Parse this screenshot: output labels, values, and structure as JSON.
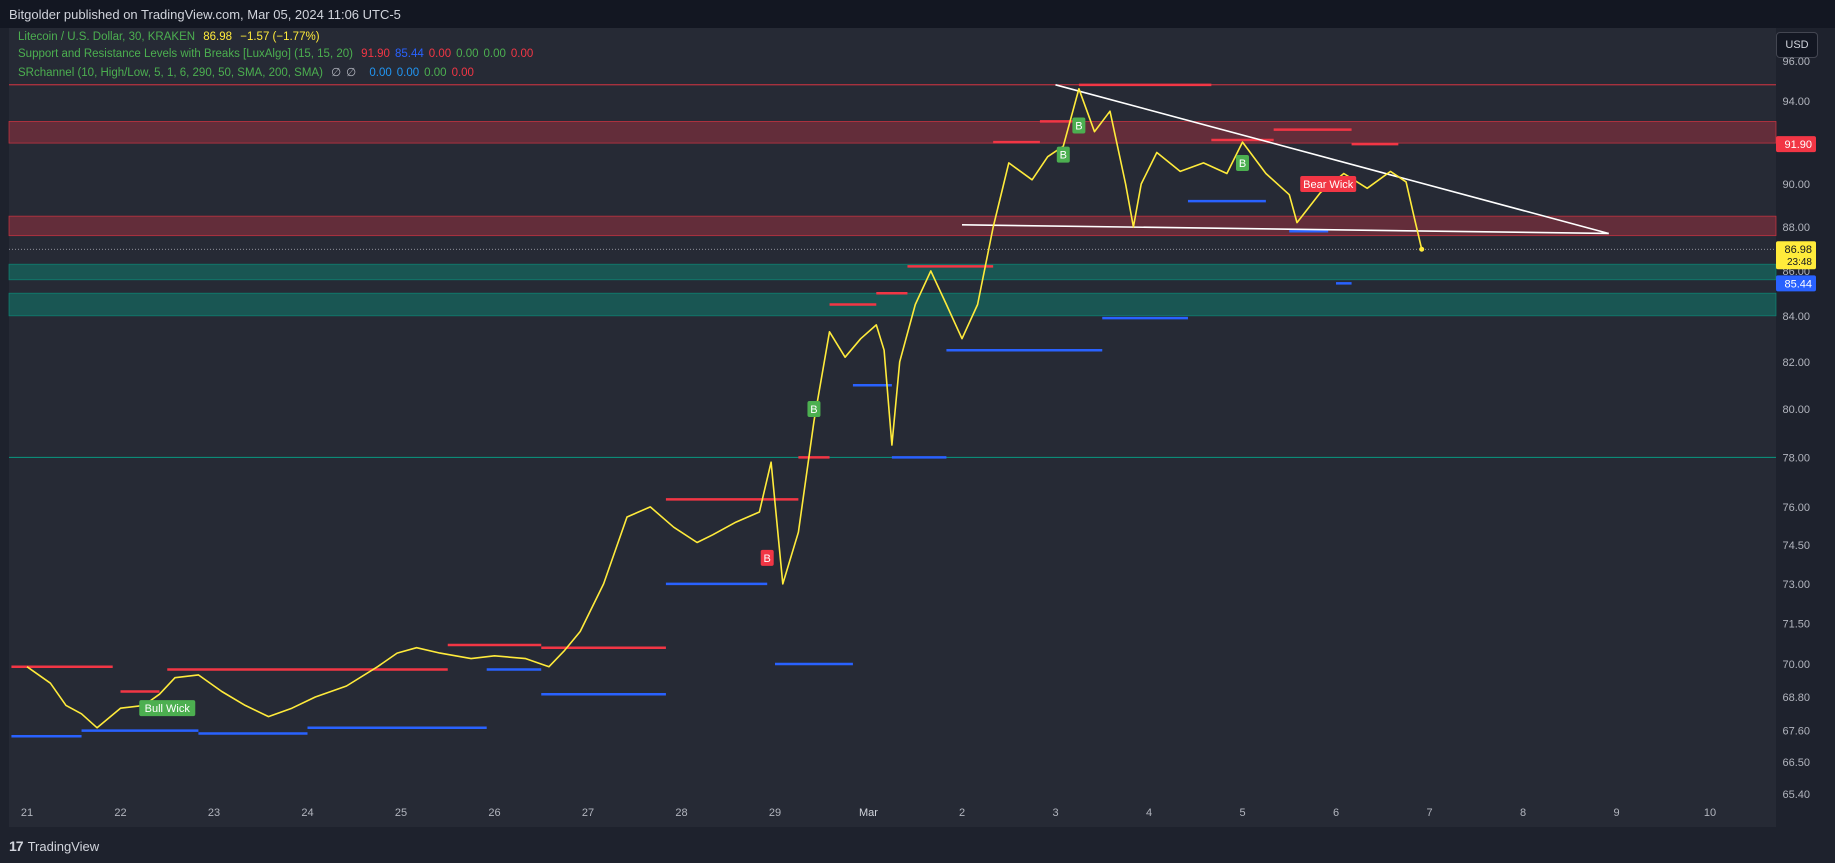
{
  "header": {
    "published": "Bitgolder published on TradingView.com, Mar 05, 2024 11:06 UTC-5"
  },
  "footer": {
    "brand": "TradingView",
    "logo": "tradingview-logo-icon"
  },
  "price_axis": {
    "currency": "USD"
  },
  "legend": {
    "symbol": "Litecoin / U.S. Dollar, 30, KRAKEN",
    "close": "86.98",
    "change": "−1.57 (−1.77%)",
    "indicator1": {
      "name": "Support and Resistance Levels with Breaks [LuxAlgo] (15, 15, 20)",
      "values": [
        "91.90",
        "85.44",
        "0.00",
        "0.00",
        "0.00",
        "0.00"
      ],
      "colors": [
        "#f23645",
        "#2962ff",
        "#f23645",
        "#4caf50",
        "#4caf50",
        "#f23645"
      ]
    },
    "indicator2": {
      "name": "SRchannel (10, High/Low, 5, 1, 6, 290, 50, SMA, 200, SMA)",
      "symbols": [
        "∅",
        "∅"
      ],
      "values": [
        "0.00",
        "0.00",
        "0.00",
        "0.00"
      ],
      "colors": [
        "#2196f3",
        "#2196f3",
        "#4caf50",
        "#f23645"
      ]
    }
  },
  "colors": {
    "price_line": "#ffeb3b",
    "resistance": "#f23645",
    "support": "#2962ff",
    "bg": "#262a35",
    "axis_text": "#b2b5be"
  },
  "chart_data": {
    "type": "line",
    "series": [
      {
        "name": "Litecoin / U.S. Dollar",
        "points": [
          [
            "Feb 21 00:00",
            69.9
          ],
          [
            "Feb 21 06:00",
            69.3
          ],
          [
            "Feb 21 10:00",
            68.5
          ],
          [
            "Feb 21 14:00",
            68.2
          ],
          [
            "Feb 21 18:00",
            67.7
          ],
          [
            "Feb 22 00:00",
            68.4
          ],
          [
            "Feb 22 06:00",
            68.5
          ],
          [
            "Feb 22 10:00",
            68.9
          ],
          [
            "Feb 22 14:00",
            69.5
          ],
          [
            "Feb 22 20:00",
            69.6
          ],
          [
            "Feb 23 02:00",
            69.0
          ],
          [
            "Feb 23 08:00",
            68.5
          ],
          [
            "Feb 23 14:00",
            68.1
          ],
          [
            "Feb 23 20:00",
            68.4
          ],
          [
            "Feb 24 02:00",
            68.8
          ],
          [
            "Feb 24 10:00",
            69.2
          ],
          [
            "Feb 24 18:00",
            69.9
          ],
          [
            "Feb 24 23:00",
            70.4
          ],
          [
            "Feb 25 04:00",
            70.6
          ],
          [
            "Feb 25 10:00",
            70.4
          ],
          [
            "Feb 25 18:00",
            70.2
          ],
          [
            "Feb 26 00:00",
            70.3
          ],
          [
            "Feb 26 08:00",
            70.2
          ],
          [
            "Feb 26 14:00",
            69.9
          ],
          [
            "Feb 26 18:00",
            70.5
          ],
          [
            "Feb 26 22:00",
            71.2
          ],
          [
            "Feb 27 04:00",
            73.0
          ],
          [
            "Feb 27 10:00",
            75.6
          ],
          [
            "Feb 27 16:00",
            76.0
          ],
          [
            "Feb 27 22:00",
            75.2
          ],
          [
            "Feb 28 04:00",
            74.6
          ],
          [
            "Feb 28 08:00",
            74.9
          ],
          [
            "Feb 28 14:00",
            75.4
          ],
          [
            "Feb 28 20:00",
            75.8
          ],
          [
            "Feb 28 23:00",
            77.8
          ],
          [
            "Feb 29 02:00",
            73.0
          ],
          [
            "Feb 29 06:00",
            75.0
          ],
          [
            "Feb 29 10:00",
            79.5
          ],
          [
            "Feb 29 14:00",
            83.3
          ],
          [
            "Feb 29 18:00",
            82.2
          ],
          [
            "Feb 29 22:00",
            83.0
          ],
          [
            "Mar 01 02:00",
            83.6
          ],
          [
            "Mar 01 04:00",
            82.5
          ],
          [
            "Mar 01 06:00",
            78.5
          ],
          [
            "Mar 01 08:00",
            82.0
          ],
          [
            "Mar 01 12:00",
            84.5
          ],
          [
            "Mar 01 16:00",
            86.0
          ],
          [
            "Mar 01 20:00",
            84.5
          ],
          [
            "Mar 02 00:00",
            83.0
          ],
          [
            "Mar 02 04:00",
            84.5
          ],
          [
            "Mar 02 08:00",
            88.0
          ],
          [
            "Mar 02 12:00",
            91.0
          ],
          [
            "Mar 02 18:00",
            90.2
          ],
          [
            "Mar 02 22:00",
            91.3
          ],
          [
            "Mar 03 02:00",
            91.8
          ],
          [
            "Mar 03 06:00",
            94.6
          ],
          [
            "Mar 03 10:00",
            92.5
          ],
          [
            "Mar 03 14:00",
            93.5
          ],
          [
            "Mar 03 18:00",
            90.0
          ],
          [
            "Mar 03 20:00",
            88.0
          ],
          [
            "Mar 03 22:00",
            90.0
          ],
          [
            "Mar 04 02:00",
            91.5
          ],
          [
            "Mar 04 08:00",
            90.6
          ],
          [
            "Mar 04 14:00",
            91.0
          ],
          [
            "Mar 04 20:00",
            90.5
          ],
          [
            "Mar 05 00:00",
            92.0
          ],
          [
            "Mar 05 06:00",
            90.5
          ],
          [
            "Mar 05 12:00",
            89.5
          ],
          [
            "Mar 05 14:00",
            88.2
          ],
          [
            "Mar 05 20:00",
            89.6
          ],
          [
            "Mar 06 02:00",
            90.5
          ],
          [
            "Mar 06 08:00",
            89.8
          ],
          [
            "Mar 06 14:00",
            90.6
          ],
          [
            "Mar 06 18:00",
            90.1
          ],
          [
            "Mar 06 20:00",
            88.5
          ],
          [
            "Mar 06 22:00",
            86.98
          ]
        ]
      }
    ],
    "resistance_levels": [
      {
        "price": 69.9,
        "from": "Feb 20 20:00",
        "to": "Feb 21 22:00"
      },
      {
        "price": 69.0,
        "from": "Feb 22 00:00",
        "to": "Feb 22 10:00"
      },
      {
        "price": 69.8,
        "from": "Feb 22 12:00",
        "to": "Feb 25 12:00"
      },
      {
        "price": 70.7,
        "from": "Feb 25 12:00",
        "to": "Feb 26 12:00"
      },
      {
        "price": 70.6,
        "from": "Feb 26 12:00",
        "to": "Feb 27 20:00"
      },
      {
        "price": 76.3,
        "from": "Feb 27 20:00",
        "to": "Feb 29 06:00"
      },
      {
        "price": 78.0,
        "from": "Feb 29 06:00",
        "to": "Feb 29 14:00"
      },
      {
        "price": 84.5,
        "from": "Feb 29 14:00",
        "to": "Mar 01 02:00"
      },
      {
        "price": 85.0,
        "from": "Mar 01 02:00",
        "to": "Mar 01 10:00"
      },
      {
        "price": 86.2,
        "from": "Mar 01 10:00",
        "to": "Mar 02 08:00"
      },
      {
        "price": 92.0,
        "from": "Mar 02 08:00",
        "to": "Mar 02 20:00"
      },
      {
        "price": 93.0,
        "from": "Mar 02 20:00",
        "to": "Mar 03 06:00"
      },
      {
        "price": 94.8,
        "from": "Mar 03 06:00",
        "to": "Mar 04 16:00"
      },
      {
        "price": 92.1,
        "from": "Mar 04 16:00",
        "to": "Mar 05 08:00"
      },
      {
        "price": 92.6,
        "from": "Mar 05 08:00",
        "to": "Mar 06 04:00"
      },
      {
        "price": 91.9,
        "from": "Mar 06 04:00",
        "to": "Mar 06 16:00"
      }
    ],
    "support_levels": [
      {
        "price": 67.4,
        "from": "Feb 20 20:00",
        "to": "Feb 21 14:00"
      },
      {
        "price": 67.6,
        "from": "Feb 21 14:00",
        "to": "Feb 22 20:00"
      },
      {
        "price": 67.5,
        "from": "Feb 22 20:00",
        "to": "Feb 24 00:00"
      },
      {
        "price": 67.7,
        "from": "Feb 24 00:00",
        "to": "Feb 25 22:00"
      },
      {
        "price": 69.8,
        "from": "Feb 25 22:00",
        "to": "Feb 26 12:00"
      },
      {
        "price": 68.9,
        "from": "Feb 26 12:00",
        "to": "Feb 27 20:00"
      },
      {
        "price": 73.0,
        "from": "Feb 27 20:00",
        "to": "Feb 28 22:00"
      },
      {
        "price": 70.0,
        "from": "Feb 29 00:00",
        "to": "Feb 29 20:00"
      },
      {
        "price": 81.0,
        "from": "Feb 29 20:00",
        "to": "Mar 01 06:00"
      },
      {
        "price": 78.0,
        "from": "Mar 01 06:00",
        "to": "Mar 01 20:00"
      },
      {
        "price": 82.5,
        "from": "Mar 01 20:00",
        "to": "Mar 03 12:00"
      },
      {
        "price": 83.9,
        "from": "Mar 03 12:00",
        "to": "Mar 04 10:00"
      },
      {
        "price": 89.2,
        "from": "Mar 04 10:00",
        "to": "Mar 05 06:00"
      },
      {
        "price": 87.8,
        "from": "Mar 05 12:00",
        "to": "Mar 05 22:00"
      },
      {
        "price": 85.44,
        "from": "Mar 06 00:00",
        "to": "Mar 06 04:00"
      }
    ],
    "zones": [
      {
        "low": 91.95,
        "high": 93.0,
        "color": "#f23645",
        "opacity": 0.3
      },
      {
        "low": 87.6,
        "high": 88.5,
        "color": "#f23645",
        "opacity": 0.3
      },
      {
        "low": 85.6,
        "high": 86.3,
        "color": "#089981",
        "opacity": 0.4
      },
      {
        "low": 84.0,
        "high": 85.0,
        "color": "#089981",
        "opacity": 0.4
      }
    ],
    "horizontal_lines": [
      {
        "price": 94.8,
        "color": "#f23645",
        "width": 0.8
      },
      {
        "price": 78.0,
        "color": "#089981",
        "width": 1
      }
    ],
    "trendlines": [
      {
        "from": [
          "Mar 03 00:00",
          94.8
        ],
        "to": [
          "Mar 08 22:00",
          87.7
        ]
      },
      {
        "from": [
          "Mar 02 00:00",
          88.1
        ],
        "to": [
          "Mar 08 22:00",
          87.7
        ]
      }
    ],
    "labels": [
      {
        "text": "Bull Wick",
        "at": [
          "Feb 22 12:00",
          68.4
        ],
        "color": "#4caf50"
      },
      {
        "text": "Bear Wick",
        "at": [
          "Mar 05 22:00",
          90.0
        ],
        "color": "#f23645"
      },
      {
        "text": "B",
        "at": [
          "Feb 29 10:00",
          80.0
        ],
        "color": "#4caf50"
      },
      {
        "text": "B",
        "at": [
          "Feb 28 22:00",
          74.0
        ],
        "color": "#f23645"
      },
      {
        "text": "B",
        "at": [
          "Mar 03 02:00",
          91.4
        ],
        "color": "#4caf50"
      },
      {
        "text": "B",
        "at": [
          "Mar 03 06:00",
          92.8
        ],
        "color": "#4caf50"
      },
      {
        "text": "B",
        "at": [
          "Mar 05 00:00",
          91.0
        ],
        "color": "#4caf50"
      }
    ],
    "y_ticks": [
      "96.00",
      "94.00",
      "92.00",
      "90.00",
      "88.00",
      "86.00",
      "84.00",
      "82.00",
      "80.00",
      "78.00",
      "76.00",
      "74.50",
      "73.00",
      "71.50",
      "70.00",
      "68.80",
      "67.60",
      "66.50",
      "65.40"
    ],
    "x_ticks": [
      "21",
      "22",
      "23",
      "24",
      "25",
      "26",
      "27",
      "28",
      "29",
      "Mar",
      "2",
      "3",
      "4",
      "5",
      "6",
      "7",
      "8",
      "9",
      "10"
    ],
    "x_tick_dates": [
      "Feb 21",
      "Feb 22",
      "Feb 23",
      "Feb 24",
      "Feb 25",
      "Feb 26",
      "Feb 27",
      "Feb 28",
      "Feb 29",
      "Mar 01",
      "Mar 02",
      "Mar 03",
      "Mar 04",
      "Mar 05",
      "Mar 06",
      "Mar 07",
      "Mar 08",
      "Mar 09",
      "Mar 10"
    ],
    "price_labels": [
      {
        "text": "91.90",
        "price": 91.9,
        "bg": "#f23645",
        "fg": "#ffffff"
      },
      {
        "text": "86.98",
        "countdown": "23:48",
        "price": 86.98,
        "bg": "#ffeb3b",
        "fg": "#131722"
      },
      {
        "text": "85.44",
        "price": 85.44,
        "bg": "#2962ff",
        "fg": "#ffffff"
      }
    ],
    "y_scale": "log",
    "grid": false
  }
}
